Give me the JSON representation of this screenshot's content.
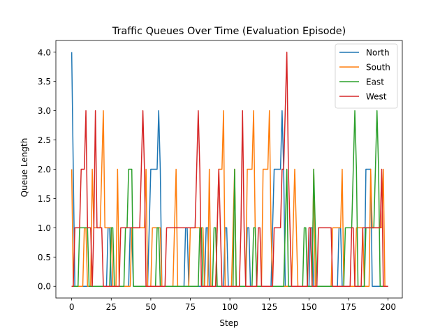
{
  "chart_data": {
    "type": "line",
    "title": "Traffic Queues Over Time (Evaluation Episode)",
    "xlabel": "Step",
    "ylabel": "Queue Length",
    "xlim": [
      -10,
      209
    ],
    "ylim": [
      -0.2,
      4.2
    ],
    "xticks": [
      0,
      25,
      50,
      75,
      100,
      125,
      150,
      175,
      200
    ],
    "yticks": [
      0.0,
      0.5,
      1.0,
      1.5,
      2.0,
      2.5,
      3.0,
      3.5,
      4.0
    ],
    "ytick_labels": [
      "0.0",
      "0.5",
      "1.0",
      "1.5",
      "2.0",
      "2.5",
      "3.0",
      "3.5",
      "4.0"
    ],
    "grid": false,
    "legend_position": "top-right",
    "series": [
      {
        "name": "North",
        "color": "#1f77b4",
        "points": [
          [
            0,
            4
          ],
          [
            1,
            2
          ],
          [
            2,
            0
          ],
          [
            22,
            0
          ],
          [
            23,
            1
          ],
          [
            24,
            1
          ],
          [
            25,
            0
          ],
          [
            36,
            0
          ],
          [
            37,
            1
          ],
          [
            38,
            1
          ],
          [
            39,
            0
          ],
          [
            48,
            0
          ],
          [
            49,
            1
          ],
          [
            50,
            2
          ],
          [
            54,
            2
          ],
          [
            55,
            3
          ],
          [
            56,
            2
          ],
          [
            57,
            0
          ],
          [
            71,
            0
          ],
          [
            72,
            1
          ],
          [
            73,
            1
          ],
          [
            74,
            0
          ],
          [
            84,
            0
          ],
          [
            85,
            1
          ],
          [
            86,
            1
          ],
          [
            87,
            0
          ],
          [
            96,
            0
          ],
          [
            97,
            1
          ],
          [
            98,
            1
          ],
          [
            99,
            0
          ],
          [
            110,
            0
          ],
          [
            111,
            1
          ],
          [
            112,
            1
          ],
          [
            113,
            0
          ],
          [
            126,
            0
          ],
          [
            127,
            1
          ],
          [
            128,
            2
          ],
          [
            132,
            2
          ],
          [
            133,
            3
          ],
          [
            134,
            2
          ],
          [
            135,
            0
          ],
          [
            150,
            0
          ],
          [
            151,
            1
          ],
          [
            152,
            1
          ],
          [
            153,
            0
          ],
          [
            168,
            0
          ],
          [
            169,
            1
          ],
          [
            170,
            1
          ],
          [
            171,
            0
          ],
          [
            185,
            0
          ],
          [
            186,
            2
          ],
          [
            189,
            2
          ],
          [
            190,
            0
          ],
          [
            200,
            0
          ]
        ]
      },
      {
        "name": "South",
        "color": "#ff7f0e",
        "points": [
          [
            0,
            2
          ],
          [
            1,
            0
          ],
          [
            7,
            0
          ],
          [
            8,
            1
          ],
          [
            9,
            1
          ],
          [
            10,
            0
          ],
          [
            12,
            0
          ],
          [
            13,
            2
          ],
          [
            14,
            1
          ],
          [
            18,
            1
          ],
          [
            19,
            2
          ],
          [
            20,
            3
          ],
          [
            21,
            1
          ],
          [
            25,
            1
          ],
          [
            26,
            0
          ],
          [
            28,
            0
          ],
          [
            29,
            2
          ],
          [
            30,
            0
          ],
          [
            37,
            0
          ],
          [
            38,
            1
          ],
          [
            46,
            1
          ],
          [
            47,
            2
          ],
          [
            48,
            0
          ],
          [
            50,
            0
          ],
          [
            51,
            1
          ],
          [
            56,
            1
          ],
          [
            57,
            0
          ],
          [
            64,
            0
          ],
          [
            65,
            1
          ],
          [
            66,
            2
          ],
          [
            67,
            0
          ],
          [
            74,
            0
          ],
          [
            75,
            1
          ],
          [
            83,
            1
          ],
          [
            84,
            0
          ],
          [
            86,
            0
          ],
          [
            87,
            2
          ],
          [
            88,
            0
          ],
          [
            91,
            0
          ],
          [
            92,
            1
          ],
          [
            93,
            2
          ],
          [
            95,
            2
          ],
          [
            96,
            3
          ],
          [
            97,
            0
          ],
          [
            101,
            0
          ],
          [
            102,
            1
          ],
          [
            103,
            2
          ],
          [
            104,
            0
          ],
          [
            110,
            0
          ],
          [
            111,
            2
          ],
          [
            114,
            2
          ],
          [
            115,
            3
          ],
          [
            116,
            1
          ],
          [
            117,
            0
          ],
          [
            120,
            0
          ],
          [
            121,
            2
          ],
          [
            124,
            2
          ],
          [
            125,
            3
          ],
          [
            126,
            1
          ],
          [
            127,
            0
          ],
          [
            139,
            0
          ],
          [
            140,
            1
          ],
          [
            141,
            2
          ],
          [
            142,
            1
          ],
          [
            143,
            0
          ],
          [
            152,
            0
          ],
          [
            153,
            2
          ],
          [
            154,
            0
          ],
          [
            164,
            0
          ],
          [
            165,
            1
          ],
          [
            170,
            1
          ],
          [
            171,
            2
          ],
          [
            172,
            0
          ],
          [
            179,
            0
          ],
          [
            180,
            1
          ],
          [
            184,
            1
          ],
          [
            185,
            0
          ],
          [
            188,
            0
          ],
          [
            189,
            2
          ],
          [
            190,
            1
          ],
          [
            196,
            1
          ],
          [
            197,
            2
          ],
          [
            198,
            0
          ],
          [
            199,
            0
          ]
        ]
      },
      {
        "name": "East",
        "color": "#2ca02c",
        "points": [
          [
            0,
            0
          ],
          [
            4,
            0
          ],
          [
            5,
            1
          ],
          [
            10,
            1
          ],
          [
            11,
            0
          ],
          [
            24,
            0
          ],
          [
            25,
            1
          ],
          [
            26,
            1
          ],
          [
            27,
            0
          ],
          [
            33,
            0
          ],
          [
            34,
            1
          ],
          [
            35,
            1
          ],
          [
            36,
            2
          ],
          [
            38,
            2
          ],
          [
            39,
            0
          ],
          [
            53,
            0
          ],
          [
            54,
            1
          ],
          [
            55,
            1
          ],
          [
            56,
            0
          ],
          [
            80,
            0
          ],
          [
            81,
            1
          ],
          [
            82,
            1
          ],
          [
            83,
            0
          ],
          [
            89,
            0
          ],
          [
            90,
            1
          ],
          [
            91,
            1
          ],
          [
            92,
            0
          ],
          [
            102,
            0
          ],
          [
            103,
            2
          ],
          [
            104,
            0
          ],
          [
            114,
            0
          ],
          [
            115,
            1
          ],
          [
            116,
            1
          ],
          [
            117,
            0
          ],
          [
            134,
            0
          ],
          [
            135,
            1
          ],
          [
            136,
            2
          ],
          [
            137,
            0
          ],
          [
            146,
            0
          ],
          [
            147,
            1
          ],
          [
            148,
            1
          ],
          [
            149,
            0
          ],
          [
            152,
            0
          ],
          [
            153,
            2
          ],
          [
            154,
            1
          ],
          [
            155,
            0
          ],
          [
            172,
            0
          ],
          [
            173,
            1
          ],
          [
            177,
            1
          ],
          [
            178,
            2
          ],
          [
            179,
            3
          ],
          [
            180,
            2
          ],
          [
            181,
            0
          ],
          [
            185,
            0
          ],
          [
            186,
            1
          ],
          [
            191,
            1
          ],
          [
            192,
            2
          ],
          [
            193,
            3
          ],
          [
            194,
            2
          ],
          [
            195,
            0
          ],
          [
            200,
            0
          ]
        ]
      },
      {
        "name": "West",
        "color": "#d62728",
        "points": [
          [
            0,
            0
          ],
          [
            1,
            0
          ],
          [
            2,
            1
          ],
          [
            5,
            1
          ],
          [
            6,
            2
          ],
          [
            8,
            2
          ],
          [
            9,
            3
          ],
          [
            10,
            1
          ],
          [
            12,
            1
          ],
          [
            13,
            0
          ],
          [
            14,
            1
          ],
          [
            15,
            3
          ],
          [
            16,
            1
          ],
          [
            19,
            1
          ],
          [
            20,
            0
          ],
          [
            30,
            0
          ],
          [
            31,
            1
          ],
          [
            43,
            1
          ],
          [
            44,
            2
          ],
          [
            45,
            3
          ],
          [
            46,
            2
          ],
          [
            47,
            0
          ],
          [
            59,
            0
          ],
          [
            60,
            1
          ],
          [
            78,
            1
          ],
          [
            79,
            2
          ],
          [
            80,
            3
          ],
          [
            81,
            2
          ],
          [
            82,
            0
          ],
          [
            91,
            0
          ],
          [
            92,
            1
          ],
          [
            93,
            2
          ],
          [
            94,
            1
          ],
          [
            95,
            0
          ],
          [
            106,
            0
          ],
          [
            107,
            1
          ],
          [
            108,
            3
          ],
          [
            109,
            1
          ],
          [
            110,
            0
          ],
          [
            117,
            0
          ],
          [
            118,
            1
          ],
          [
            119,
            1
          ],
          [
            120,
            0
          ],
          [
            127,
            0
          ],
          [
            128,
            1
          ],
          [
            132,
            1
          ],
          [
            133,
            2
          ],
          [
            134,
            2
          ],
          [
            135,
            3
          ],
          [
            136,
            4
          ],
          [
            137,
            2
          ],
          [
            138,
            1
          ],
          [
            139,
            0
          ],
          [
            149,
            0
          ],
          [
            150,
            1
          ],
          [
            151,
            1
          ],
          [
            152,
            0
          ],
          [
            155,
            0
          ],
          [
            156,
            1
          ],
          [
            164,
            1
          ],
          [
            165,
            0
          ],
          [
            176,
            0
          ],
          [
            177,
            1
          ],
          [
            178,
            1
          ],
          [
            179,
            0
          ],
          [
            183,
            0
          ],
          [
            184,
            1
          ],
          [
            195,
            1
          ],
          [
            196,
            2
          ],
          [
            197,
            0
          ],
          [
            200,
            0
          ]
        ]
      }
    ]
  }
}
